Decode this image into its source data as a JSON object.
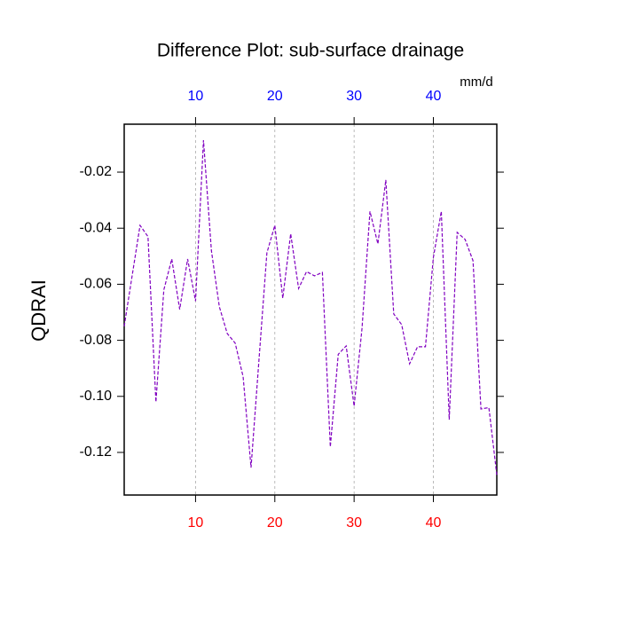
{
  "chart_data": {
    "type": "line",
    "title": "Difference Plot: sub-surface drainage",
    "y_label": "QDRAI",
    "units": "mm/d",
    "x": [
      1,
      2,
      3,
      4,
      5,
      6,
      7,
      8,
      9,
      10,
      11,
      12,
      13,
      14,
      15,
      16,
      17,
      18,
      19,
      20,
      21,
      22,
      23,
      24,
      25,
      26,
      27,
      28,
      29,
      30,
      31,
      32,
      33,
      34,
      35,
      36,
      37,
      38,
      39,
      40,
      41,
      42,
      43,
      44,
      45,
      46,
      47,
      48
    ],
    "series": [
      {
        "color": "#8000c0",
        "values": [
          -0.075,
          -0.057,
          -0.039,
          -0.043,
          -0.102,
          -0.062,
          -0.051,
          -0.069,
          -0.051,
          -0.066,
          -0.0086,
          -0.048,
          -0.068,
          -0.0776,
          -0.081,
          -0.093,
          -0.1254,
          -0.087,
          -0.0488,
          -0.039,
          -0.065,
          -0.042,
          -0.0615,
          -0.0555,
          -0.057,
          -0.0558,
          -0.118,
          -0.085,
          -0.082,
          -0.1035,
          -0.0757,
          -0.034,
          -0.0456,
          -0.0228,
          -0.0706,
          -0.0744,
          -0.0884,
          -0.0823,
          -0.0823,
          -0.0504,
          -0.034,
          -0.1083,
          -0.0415,
          -0.044,
          -0.0516,
          -0.1045,
          -0.104,
          -0.128
        ]
      }
    ],
    "xlim": [
      1,
      48
    ],
    "xticks": [
      10,
      20,
      30,
      40
    ],
    "ylim": [
      -0.1352,
      -0.0029
    ],
    "yticks": [
      -0.02,
      -0.04,
      -0.06,
      -0.08,
      {
        "value": -0.1,
        "label": "-0.10"
      },
      -0.12
    ],
    "bottom_tick_color": "#ff0000",
    "top_tick_color": "#0000ff",
    "grid": true
  }
}
